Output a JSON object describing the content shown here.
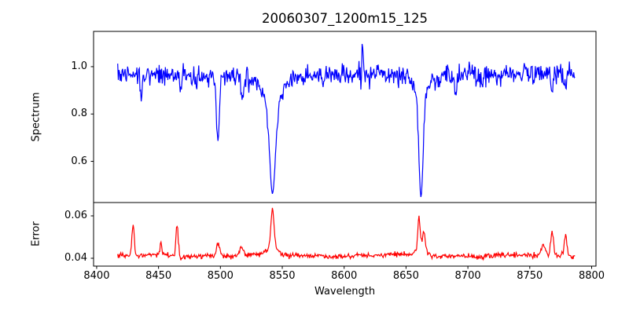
{
  "title": "20060307_1200m15_125",
  "axes": {
    "xlabel": "Wavelength",
    "ylabel_spectrum": "Spectrum",
    "ylabel_error": "Error"
  },
  "colors": {
    "spectrum_line": "#0000ff",
    "error_line": "#ff0000",
    "frame": "#000000",
    "background": "#ffffff",
    "text": "#000000"
  },
  "chart_data": [
    {
      "type": "line",
      "panel": "spectrum",
      "title": "20060307_1200m15_125",
      "xlabel": "Wavelength",
      "ylabel": "Spectrum",
      "color": "#0000ff",
      "legend": "none",
      "grid": false,
      "x_start": 8417.0,
      "x_end": 8786.5,
      "x_step": 0.5,
      "xlim": [
        8397.5,
        8803.5
      ],
      "ylim": [
        0.426,
        1.149
      ],
      "xticks": [
        8400,
        8450,
        8500,
        8550,
        8600,
        8650,
        8700,
        8750,
        8800
      ],
      "xtick_labels": [
        "8400",
        "8450",
        "8500",
        "8550",
        "8600",
        "8650",
        "8700",
        "8750",
        "8800"
      ],
      "yticks": [
        0.6,
        0.8,
        1.0
      ],
      "ytick_labels": [
        "0.6",
        "0.8",
        "1.0"
      ],
      "continuum_level": 0.968,
      "noise_sigma": 0.021,
      "seed": 42,
      "absorption_lines": [
        {
          "center": 8498.0,
          "min_flux": 0.69,
          "depth": 0.29,
          "sigma": 1.1,
          "gauss_frac": 0.85,
          "gamma": 2.5
        },
        {
          "center": 8542.1,
          "min_flux": 0.47,
          "depth": 0.52,
          "sigma": 2.2,
          "gauss_frac": 0.6,
          "gamma": 6.5
        },
        {
          "center": 8662.1,
          "min_flux": 0.45,
          "depth": 0.535,
          "sigma": 1.6,
          "gauss_frac": 0.72,
          "gamma": 4.5
        }
      ],
      "weak_lines": [
        {
          "center": 8436.0,
          "depth": 0.1,
          "sigma": 0.8
        },
        {
          "center": 8468.0,
          "depth": 0.07,
          "sigma": 0.8
        },
        {
          "center": 8481.0,
          "depth": 0.06,
          "sigma": 0.7
        },
        {
          "center": 8518.0,
          "depth": 0.06,
          "sigma": 0.9
        },
        {
          "center": 8583.0,
          "depth": 0.05,
          "sigma": 0.7
        },
        {
          "center": 8690.0,
          "depth": 0.09,
          "sigma": 0.7
        },
        {
          "center": 8711.0,
          "depth": 0.07,
          "sigma": 0.7
        },
        {
          "center": 8768.0,
          "depth": 0.06,
          "sigma": 0.8
        },
        {
          "center": 8779.0,
          "depth": 0.05,
          "sigma": 0.8
        }
      ],
      "noise_peak": {
        "center": 8615.0,
        "height": 0.14,
        "sigma": 0.5,
        "max_flux": 1.116
      }
    },
    {
      "type": "line",
      "panel": "error",
      "ylabel": "Error",
      "color": "#ff0000",
      "legend": "none",
      "grid": false,
      "x_start": 8417.0,
      "x_end": 8786.5,
      "x_step": 0.5,
      "xlim": [
        8397.5,
        8803.5
      ],
      "ylim": [
        0.0363,
        0.0663
      ],
      "yticks": [
        0.04,
        0.06
      ],
      "ytick_labels": [
        "0.04",
        "0.06"
      ],
      "baseline": 0.0412,
      "noise_sigma": 0.0006,
      "seed": 7,
      "spikes": [
        {
          "center": 8429.5,
          "height": 0.0144,
          "sigma": 0.9,
          "peak": 0.0556
        },
        {
          "center": 8452.0,
          "height": 0.005,
          "sigma": 0.8,
          "peak": 0.0462
        },
        {
          "center": 8465.0,
          "height": 0.0156,
          "sigma": 0.9,
          "peak": 0.0568
        },
        {
          "center": 8498.0,
          "height": 0.0066,
          "sigma": 1.2,
          "peak": 0.0478
        },
        {
          "center": 8517.0,
          "height": 0.004,
          "sigma": 1.5,
          "peak": 0.0452
        },
        {
          "center": 8542.1,
          "height": 0.019,
          "sigma": 1.3,
          "peak": 0.0635
        },
        {
          "center": 8542.1,
          "height": 0.003,
          "sigma": 5.0,
          "peak": 0.0635
        },
        {
          "center": 8660.5,
          "height": 0.015,
          "sigma": 1.1,
          "peak": 0.057
        },
        {
          "center": 8664.5,
          "height": 0.0095,
          "sigma": 1.1,
          "peak": 0.052
        },
        {
          "center": 8662.0,
          "height": 0.002,
          "sigma": 5.0,
          "peak": 0.057
        },
        {
          "center": 8761.0,
          "height": 0.005,
          "sigma": 1.3,
          "peak": 0.0465
        },
        {
          "center": 8768.0,
          "height": 0.0112,
          "sigma": 1.0,
          "peak": 0.0525
        },
        {
          "center": 8779.0,
          "height": 0.01,
          "sigma": 1.1,
          "peak": 0.0515
        }
      ]
    }
  ]
}
